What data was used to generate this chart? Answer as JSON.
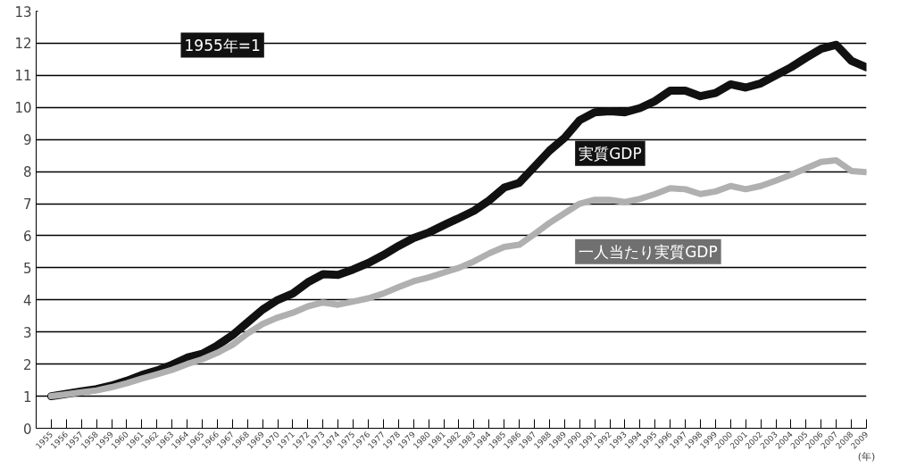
{
  "chart_data": {
    "type": "line",
    "xlabel": "(年)",
    "annotations": [
      "1955年=1"
    ],
    "x": [
      1955,
      1956,
      1957,
      1958,
      1959,
      1960,
      1961,
      1962,
      1963,
      1964,
      1965,
      1966,
      1967,
      1968,
      1969,
      1970,
      1971,
      1972,
      1973,
      1974,
      1975,
      1976,
      1977,
      1978,
      1979,
      1980,
      1981,
      1982,
      1983,
      1984,
      1985,
      1986,
      1987,
      1988,
      1989,
      1990,
      1991,
      1992,
      1993,
      1994,
      1995,
      1996,
      1997,
      1998,
      1999,
      2000,
      2001,
      2002,
      2003,
      2004,
      2005,
      2006,
      2007,
      2008,
      2009
    ],
    "series": [
      {
        "name": "実質GDP",
        "color": "#111111",
        "values": [
          1.0,
          1.07,
          1.15,
          1.22,
          1.33,
          1.48,
          1.66,
          1.8,
          1.98,
          2.2,
          2.32,
          2.58,
          2.9,
          3.3,
          3.7,
          4.0,
          4.2,
          4.55,
          4.8,
          4.78,
          4.95,
          5.15,
          5.4,
          5.68,
          5.93,
          6.1,
          6.33,
          6.55,
          6.78,
          7.1,
          7.5,
          7.65,
          8.15,
          8.65,
          9.05,
          9.6,
          9.85,
          9.88,
          9.85,
          9.98,
          10.2,
          10.52,
          10.52,
          10.35,
          10.45,
          10.72,
          10.62,
          10.75,
          11.0,
          11.25,
          11.55,
          11.83,
          11.95,
          11.45,
          11.25
        ]
      },
      {
        "name": "一人当たり実質GDP",
        "color": "#b0b0b0",
        "values": [
          1.0,
          1.06,
          1.12,
          1.18,
          1.28,
          1.4,
          1.55,
          1.68,
          1.82,
          2.0,
          2.15,
          2.35,
          2.6,
          2.95,
          3.25,
          3.45,
          3.6,
          3.8,
          3.92,
          3.85,
          3.95,
          4.05,
          4.2,
          4.4,
          4.58,
          4.7,
          4.85,
          5.0,
          5.2,
          5.45,
          5.65,
          5.72,
          6.05,
          6.4,
          6.7,
          7.0,
          7.12,
          7.12,
          7.05,
          7.15,
          7.3,
          7.48,
          7.45,
          7.3,
          7.38,
          7.55,
          7.45,
          7.55,
          7.72,
          7.9,
          8.1,
          8.3,
          8.35,
          8.02,
          7.98
        ]
      }
    ],
    "xlim": [
      1954,
      2009
    ],
    "xticks": [
      1955,
      1956,
      1957,
      1958,
      1959,
      1960,
      1961,
      1962,
      1963,
      1964,
      1965,
      1966,
      1967,
      1968,
      1969,
      1970,
      1971,
      1972,
      1973,
      1974,
      1975,
      1976,
      1977,
      1978,
      1979,
      1980,
      1981,
      1982,
      1983,
      1984,
      1985,
      1986,
      1987,
      1988,
      1989,
      1990,
      1991,
      1992,
      1993,
      1994,
      1995,
      1996,
      1997,
      1998,
      1999,
      2000,
      2001,
      2002,
      2003,
      2004,
      2005,
      2006,
      2007,
      2008,
      2009
    ],
    "ylim": [
      0,
      13
    ],
    "yticks": [
      0,
      1,
      2,
      3,
      4,
      5,
      6,
      7,
      8,
      9,
      10,
      11,
      12,
      13
    ],
    "grid": "y",
    "legend": false,
    "line_style": "solid",
    "marker": "none"
  }
}
